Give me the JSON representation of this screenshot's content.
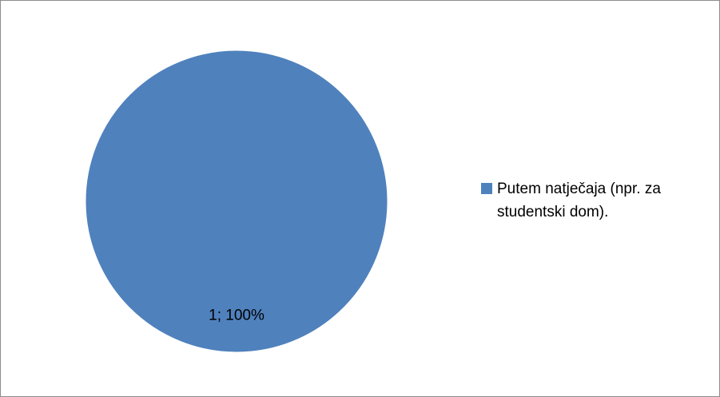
{
  "chart_data": {
    "type": "pie",
    "title": "",
    "legend_position": "right",
    "slices": [
      {
        "name": "Putem natječaja (npr. za studentski dom).",
        "value": 1,
        "percent": 100,
        "label": "1; 100%",
        "color": "#4F81BD"
      }
    ]
  }
}
